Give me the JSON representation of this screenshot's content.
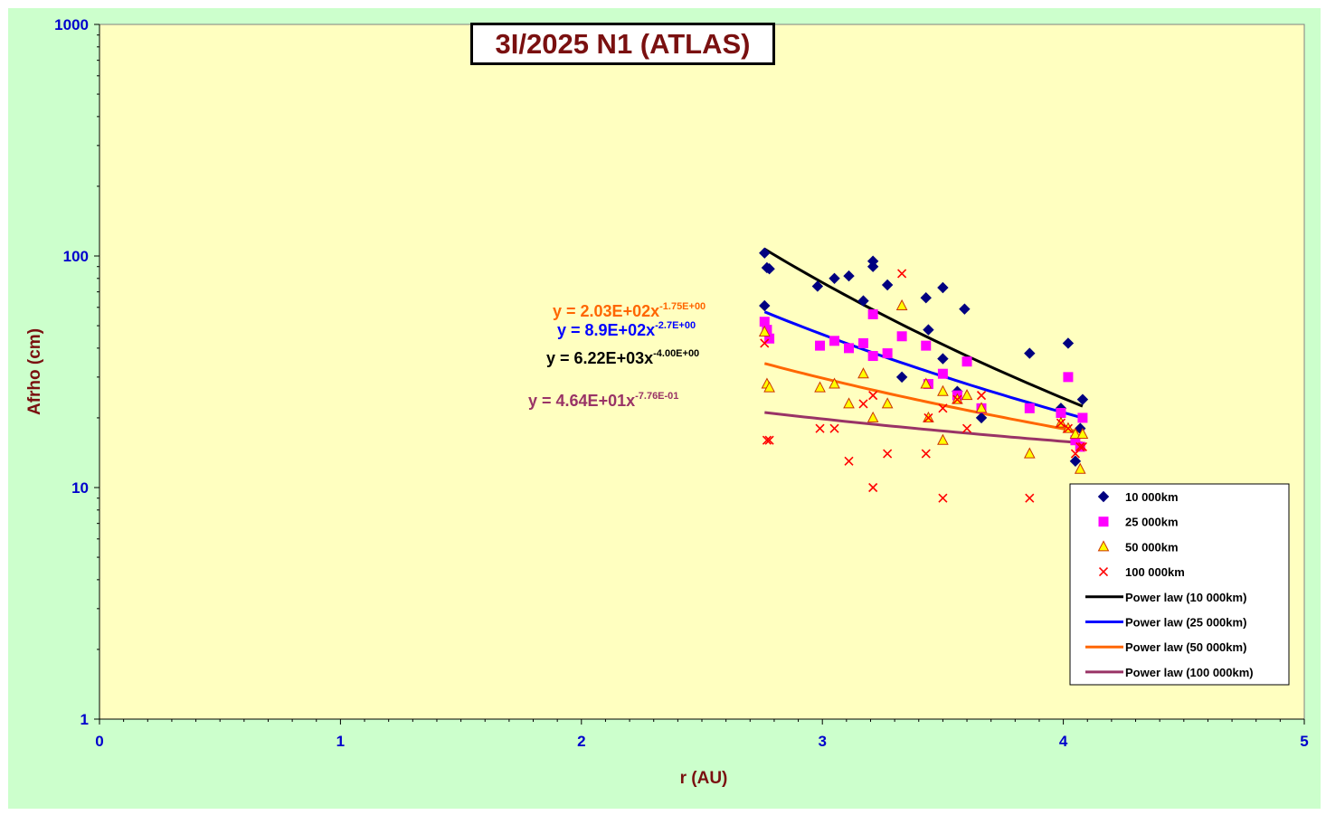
{
  "chart_data": {
    "type": "scatter",
    "title": "3I/2025 N1 (ATLAS)",
    "xlabel": "r (AU)",
    "ylabel": "Afrho (cm)",
    "xlim": [
      0,
      5
    ],
    "ylim": [
      1,
      1000
    ],
    "yscale": "log",
    "x_ticks": [
      "0",
      "1",
      "2",
      "3",
      "4",
      "5"
    ],
    "y_ticks": [
      "1",
      "10",
      "100",
      "1000"
    ],
    "grid": false,
    "legend_position": "bottom-right",
    "plot_background": "#ffffc0",
    "chart_background": "#ccffcc",
    "series": [
      {
        "name": "10 000km",
        "marker": "diamond",
        "color": "#000080",
        "points": [
          [
            2.76,
            103
          ],
          [
            2.77,
            89
          ],
          [
            2.78,
            88
          ],
          [
            2.76,
            61
          ],
          [
            2.98,
            74
          ],
          [
            3.05,
            80
          ],
          [
            3.11,
            82
          ],
          [
            3.17,
            64
          ],
          [
            3.21,
            95
          ],
          [
            3.21,
            90
          ],
          [
            3.27,
            75
          ],
          [
            3.33,
            30
          ],
          [
            3.43,
            66
          ],
          [
            3.44,
            48
          ],
          [
            3.5,
            73
          ],
          [
            3.5,
            36
          ],
          [
            3.56,
            26
          ],
          [
            3.59,
            59
          ],
          [
            3.66,
            20
          ],
          [
            3.86,
            38
          ],
          [
            3.99,
            22
          ],
          [
            4.02,
            42
          ],
          [
            4.05,
            13
          ],
          [
            4.07,
            18
          ],
          [
            4.08,
            24
          ]
        ]
      },
      {
        "name": "25 000km",
        "marker": "square",
        "color": "#ff00ff",
        "points": [
          [
            2.76,
            52
          ],
          [
            2.77,
            48
          ],
          [
            2.78,
            44
          ],
          [
            2.99,
            41
          ],
          [
            3.05,
            43
          ],
          [
            3.11,
            40
          ],
          [
            3.17,
            42
          ],
          [
            3.21,
            56
          ],
          [
            3.21,
            37
          ],
          [
            3.27,
            38
          ],
          [
            3.33,
            45
          ],
          [
            3.43,
            41
          ],
          [
            3.44,
            28
          ],
          [
            3.5,
            31
          ],
          [
            3.56,
            25
          ],
          [
            3.6,
            35
          ],
          [
            3.66,
            22
          ],
          [
            3.86,
            22
          ],
          [
            3.99,
            21
          ],
          [
            4.02,
            30
          ],
          [
            4.05,
            16
          ],
          [
            4.07,
            15
          ],
          [
            4.08,
            20
          ]
        ]
      },
      {
        "name": "50 000km",
        "marker": "triangle",
        "color": "#ffff00",
        "points": [
          [
            2.76,
            47
          ],
          [
            2.77,
            28
          ],
          [
            2.78,
            27
          ],
          [
            2.99,
            27
          ],
          [
            3.05,
            28
          ],
          [
            3.11,
            23
          ],
          [
            3.17,
            31
          ],
          [
            3.21,
            20
          ],
          [
            3.27,
            23
          ],
          [
            3.33,
            61
          ],
          [
            3.43,
            28
          ],
          [
            3.44,
            20
          ],
          [
            3.5,
            26
          ],
          [
            3.5,
            16
          ],
          [
            3.56,
            24
          ],
          [
            3.6,
            25
          ],
          [
            3.66,
            22
          ],
          [
            3.86,
            14
          ],
          [
            3.99,
            19
          ],
          [
            4.02,
            18
          ],
          [
            4.05,
            17
          ],
          [
            4.07,
            12
          ],
          [
            4.08,
            17
          ]
        ]
      },
      {
        "name": "100 000km",
        "marker": "cross",
        "color": "#ff0000",
        "points": [
          [
            2.76,
            42
          ],
          [
            2.77,
            16
          ],
          [
            2.78,
            16
          ],
          [
            2.99,
            18
          ],
          [
            3.05,
            18
          ],
          [
            3.11,
            13
          ],
          [
            3.17,
            23
          ],
          [
            3.21,
            10
          ],
          [
            3.21,
            25
          ],
          [
            3.27,
            14
          ],
          [
            3.33,
            84
          ],
          [
            3.43,
            14
          ],
          [
            3.44,
            20
          ],
          [
            3.5,
            9
          ],
          [
            3.5,
            22
          ],
          [
            3.56,
            24
          ],
          [
            3.6,
            18
          ],
          [
            3.66,
            25
          ],
          [
            3.86,
            9
          ],
          [
            3.99,
            19
          ],
          [
            4.02,
            18
          ],
          [
            4.05,
            14
          ],
          [
            4.07,
            15
          ],
          [
            4.08,
            15
          ]
        ]
      }
    ],
    "trendlines": [
      {
        "name": "Power law (10 000km)",
        "color": "#000000",
        "a": 6220,
        "b": -4.0,
        "x_range": [
          2.76,
          4.08
        ],
        "equation": "y = 6.22E+03x",
        "exponent": "-4.00E+00",
        "eq_color": "#000000"
      },
      {
        "name": "Power law (25 000km)",
        "color": "#0000ff",
        "a": 890,
        "b": -2.7,
        "x_range": [
          2.76,
          4.08
        ],
        "equation": "y = 8.9E+02x",
        "exponent": "-2.7E+00",
        "eq_color": "#0000ff"
      },
      {
        "name": "Power law (50 000km)",
        "color": "#ff6600",
        "a": 203,
        "b": -1.75,
        "x_range": [
          2.76,
          4.08
        ],
        "equation": "y = 2.03E+02x",
        "exponent": "-1.75E+00",
        "eq_color": "#ff6600"
      },
      {
        "name": "Power law (100 000km)",
        "color": "#993366",
        "a": 46.4,
        "b": -0.776,
        "x_range": [
          2.76,
          4.08
        ],
        "equation": "y = 4.64E+01x",
        "exponent": "-7.76E-01",
        "eq_color": "#993366"
      }
    ]
  }
}
